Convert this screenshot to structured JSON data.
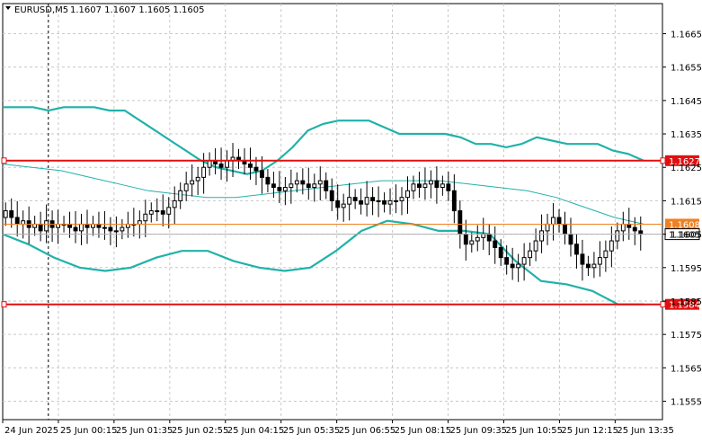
{
  "header": {
    "symbol": "EURUSD,M5",
    "ohlc": "1.1607 1.1607 1.1605 1.1605"
  },
  "colors": {
    "candle": "#000000",
    "band": "#20b2aa",
    "level": "#e01010",
    "bid_line": "#f08020",
    "grid": "#c8c8c8"
  },
  "chart_data": {
    "type": "candlestick",
    "symbol": "EURUSD",
    "timeframe": "M5",
    "ylim": [
      1.15495,
      1.1674
    ],
    "y_ticks": [
      1.1665,
      1.1655,
      1.1645,
      1.1635,
      1.1625,
      1.1615,
      1.1605,
      1.1595,
      1.1585,
      1.1575,
      1.1565,
      1.1555
    ],
    "x_ticks": [
      "24 Jun 2025",
      "25 Jun 00:15",
      "25 Jun 01:35",
      "25 Jun 02:55",
      "25 Jun 04:15",
      "25 Jun 05:35",
      "25 Jun 06:55",
      "25 Jun 08:15",
      "25 Jun 09:35",
      "25 Jun 10:55",
      "25 Jun 12:15",
      "25 Jun 13:35"
    ],
    "levels": [
      {
        "value": 1.1627,
        "label": "1.1627",
        "kind": "resistance"
      },
      {
        "value": 1.1584,
        "label": "1.1584",
        "kind": "support"
      }
    ],
    "bid": {
      "value": 1.1605,
      "label": "1.1605"
    },
    "ask_line": {
      "value": 1.1608,
      "label": "1.1608"
    },
    "closes": [
      1.1612,
      1.161,
      1.1608,
      1.1609,
      1.1607,
      1.1608,
      1.1606,
      1.1609,
      1.1607,
      1.1608,
      1.1608,
      1.1607,
      1.1606,
      1.1608,
      1.1607,
      1.1608,
      1.1607,
      1.1607,
      1.1606,
      1.1606,
      1.1607,
      1.1608,
      1.1608,
      1.1609,
      1.1611,
      1.1612,
      1.1612,
      1.1611,
      1.1613,
      1.1615,
      1.1618,
      1.162,
      1.1621,
      1.1622,
      1.1625,
      1.1627,
      1.1626,
      1.1625,
      1.1627,
      1.1628,
      1.1627,
      1.1626,
      1.1625,
      1.1624,
      1.1622,
      1.162,
      1.1619,
      1.1618,
      1.1619,
      1.162,
      1.1621,
      1.162,
      1.1619,
      1.162,
      1.1621,
      1.1618,
      1.1615,
      1.1613,
      1.1614,
      1.1616,
      1.1615,
      1.1614,
      1.1616,
      1.1615,
      1.1615,
      1.1614,
      1.1615,
      1.1615,
      1.1616,
      1.1618,
      1.162,
      1.1619,
      1.162,
      1.1621,
      1.1619,
      1.162,
      1.1618,
      1.1612,
      1.1605,
      1.1602,
      1.1603,
      1.1604,
      1.1605,
      1.1603,
      1.1601,
      1.1598,
      1.1596,
      1.1595,
      1.1596,
      1.1598,
      1.16,
      1.1603,
      1.1606,
      1.1608,
      1.161,
      1.1608,
      1.1605,
      1.1602,
      1.1599,
      1.1596,
      1.1595,
      1.1596,
      1.1598,
      1.16,
      1.1603,
      1.1606,
      1.1608,
      1.1607,
      1.1606,
      1.1605
    ],
    "upper_band": [
      1.1643,
      1.1643,
      1.1643,
      1.1642,
      1.1643,
      1.1643,
      1.1643,
      1.1642,
      1.1642,
      1.1639,
      1.1636,
      1.1633,
      1.163,
      1.1627,
      1.1625,
      1.1624,
      1.1623,
      1.1624,
      1.1627,
      1.1631,
      1.1636,
      1.1638,
      1.1639,
      1.1639,
      1.1639,
      1.1637,
      1.1635,
      1.1635,
      1.1635,
      1.1635,
      1.1634,
      1.1632,
      1.1632,
      1.1631,
      1.1632,
      1.1634,
      1.1633,
      1.1632,
      1.1632,
      1.1632,
      1.163,
      1.1629,
      1.1627
    ],
    "middle_band": [
      1.1626,
      1.1625,
      1.1624,
      1.1622,
      1.162,
      1.1618,
      1.1617,
      1.1616,
      1.1616,
      1.1617,
      1.1618,
      1.1619,
      1.162,
      1.1621,
      1.1621,
      1.1621,
      1.162,
      1.1619,
      1.1618,
      1.1616,
      1.1613,
      1.161,
      1.1608
    ],
    "lower_band": [
      1.1605,
      1.1602,
      1.1598,
      1.1595,
      1.1594,
      1.1595,
      1.1598,
      1.16,
      1.16,
      1.1597,
      1.1595,
      1.1594,
      1.1595,
      1.16,
      1.1606,
      1.1609,
      1.1608,
      1.1606,
      1.1606,
      1.1605,
      1.1597,
      1.1591,
      1.159,
      1.1588,
      1.1584,
      1.1584
    ]
  }
}
